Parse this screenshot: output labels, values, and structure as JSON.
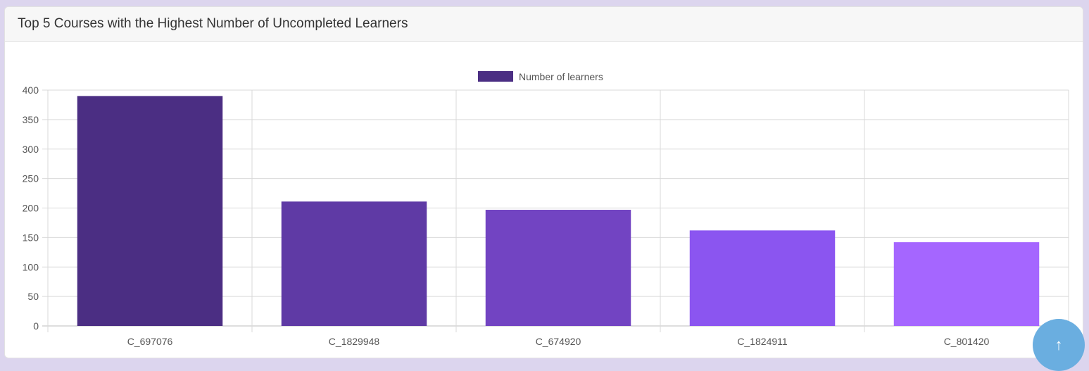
{
  "card": {
    "title": "Top 5 Courses with the Highest Number of Uncompleted Learners"
  },
  "scroll_top": {
    "icon": "arrow-up-icon",
    "glyph": "↑"
  },
  "chart_data": {
    "type": "bar",
    "title": "",
    "xlabel": "",
    "ylabel": "",
    "categories": [
      "C_697076",
      "C_1829948",
      "C_674920",
      "C_1824911",
      "C_801420"
    ],
    "series": [
      {
        "name": "Number of learners",
        "values": [
          390,
          211,
          197,
          162,
          142
        ],
        "colors": [
          "#4b2e83",
          "#5f3aa5",
          "#7244c2",
          "#8b55f0",
          "#a566ff"
        ]
      }
    ],
    "legend_color": "#4b2e83",
    "ylim": [
      0,
      400
    ],
    "yticks": [
      0,
      50,
      100,
      150,
      200,
      250,
      300,
      350,
      400
    ],
    "grid": true,
    "legend_position": "top-center"
  }
}
